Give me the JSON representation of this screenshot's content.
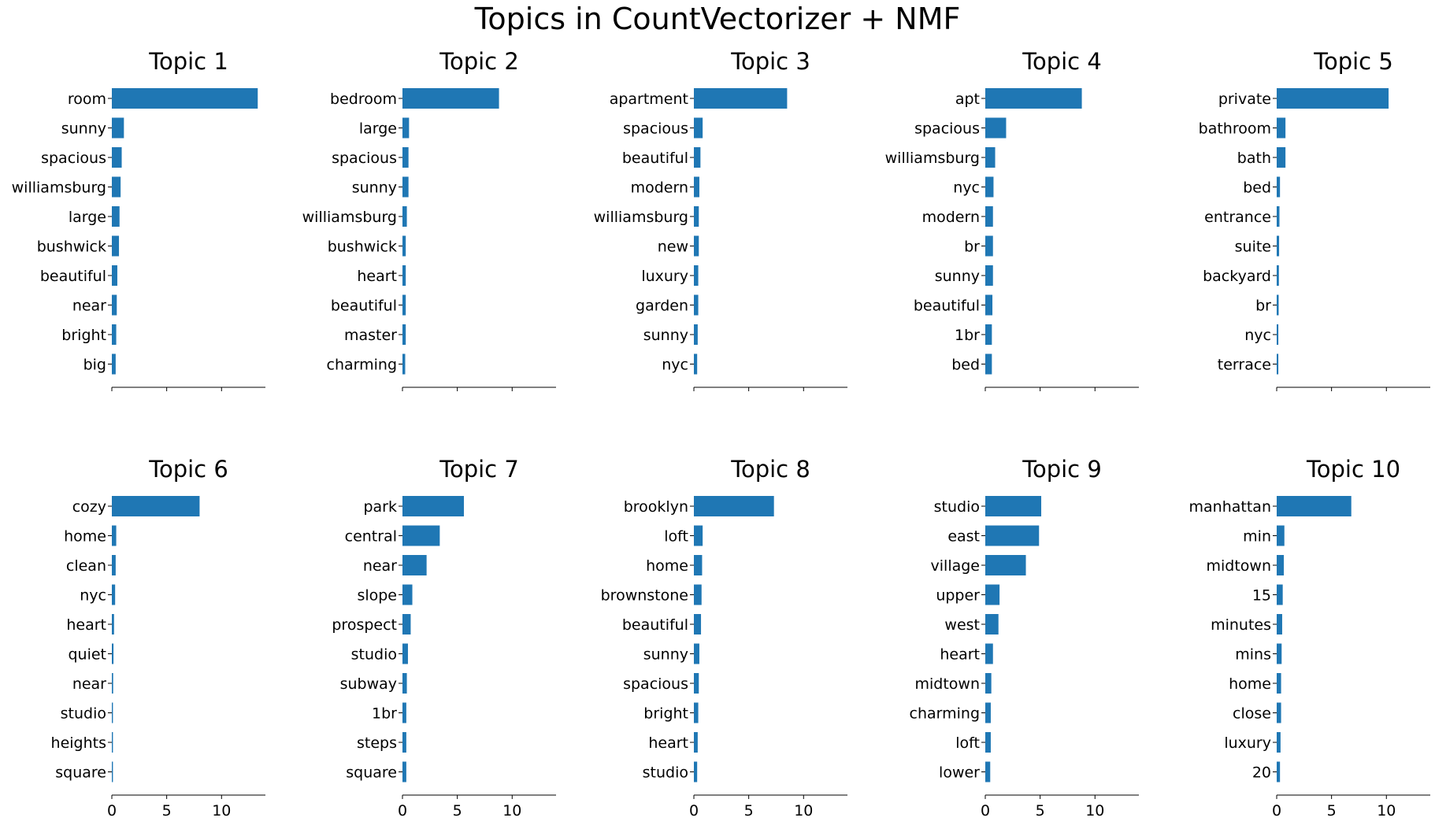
{
  "chart_data": {
    "type": "bar",
    "orientation": "horizontal",
    "title": "Topics in CountVectorizer + NMF",
    "xlim": [
      0,
      14
    ],
    "xticks": [
      0,
      5,
      10
    ],
    "grid": false,
    "bar_color": "#1f77b4",
    "subplots": [
      {
        "title": "Topic 1",
        "words": [
          "room",
          "sunny",
          "spacious",
          "williamsburg",
          "large",
          "bushwick",
          "beautiful",
          "near",
          "bright",
          "big"
        ],
        "values": [
          13.3,
          1.1,
          0.9,
          0.8,
          0.7,
          0.65,
          0.5,
          0.45,
          0.4,
          0.35
        ]
      },
      {
        "title": "Topic 2",
        "words": [
          "bedroom",
          "large",
          "spacious",
          "sunny",
          "williamsburg",
          "bushwick",
          "heart",
          "beautiful",
          "master",
          "charming"
        ],
        "values": [
          8.8,
          0.6,
          0.55,
          0.55,
          0.4,
          0.3,
          0.3,
          0.3,
          0.3,
          0.25
        ]
      },
      {
        "title": "Topic 3",
        "words": [
          "apartment",
          "spacious",
          "beautiful",
          "modern",
          "williamsburg",
          "new",
          "luxury",
          "garden",
          "sunny",
          "nyc"
        ],
        "values": [
          8.5,
          0.8,
          0.6,
          0.5,
          0.45,
          0.45,
          0.4,
          0.4,
          0.35,
          0.3
        ]
      },
      {
        "title": "Topic 4",
        "words": [
          "apt",
          "spacious",
          "williamsburg",
          "nyc",
          "modern",
          "br",
          "sunny",
          "beautiful",
          "1br",
          "bed"
        ],
        "values": [
          8.8,
          1.9,
          0.9,
          0.75,
          0.7,
          0.7,
          0.7,
          0.65,
          0.6,
          0.6
        ]
      },
      {
        "title": "Topic 5",
        "words": [
          "private",
          "bathroom",
          "bath",
          "bed",
          "entrance",
          "suite",
          "backyard",
          "br",
          "nyc",
          "terrace"
        ],
        "values": [
          10.2,
          0.8,
          0.8,
          0.3,
          0.25,
          0.22,
          0.2,
          0.18,
          0.15,
          0.15
        ]
      },
      {
        "title": "Topic 6",
        "words": [
          "cozy",
          "home",
          "clean",
          "nyc",
          "heart",
          "quiet",
          "near",
          "studio",
          "heights",
          "square"
        ],
        "values": [
          8.0,
          0.4,
          0.35,
          0.3,
          0.2,
          0.15,
          0.12,
          0.1,
          0.1,
          0.1
        ]
      },
      {
        "title": "Topic 7",
        "words": [
          "park",
          "central",
          "near",
          "slope",
          "prospect",
          "studio",
          "subway",
          "1br",
          "steps",
          "square"
        ],
        "values": [
          5.6,
          3.4,
          2.2,
          0.9,
          0.75,
          0.5,
          0.4,
          0.35,
          0.35,
          0.35
        ]
      },
      {
        "title": "Topic 8",
        "words": [
          "brooklyn",
          "loft",
          "home",
          "brownstone",
          "beautiful",
          "sunny",
          "spacious",
          "bright",
          "heart",
          "studio"
        ],
        "values": [
          7.3,
          0.8,
          0.75,
          0.7,
          0.65,
          0.5,
          0.45,
          0.4,
          0.35,
          0.3
        ]
      },
      {
        "title": "Topic 9",
        "words": [
          "studio",
          "east",
          "village",
          "upper",
          "west",
          "heart",
          "midtown",
          "charming",
          "loft",
          "lower"
        ],
        "values": [
          5.1,
          4.9,
          3.7,
          1.3,
          1.2,
          0.7,
          0.55,
          0.5,
          0.5,
          0.45
        ]
      },
      {
        "title": "Topic 10",
        "words": [
          "manhattan",
          "min",
          "midtown",
          "15",
          "minutes",
          "mins",
          "home",
          "close",
          "luxury",
          "20"
        ],
        "values": [
          6.8,
          0.7,
          0.65,
          0.55,
          0.5,
          0.45,
          0.4,
          0.4,
          0.35,
          0.3
        ]
      }
    ]
  }
}
